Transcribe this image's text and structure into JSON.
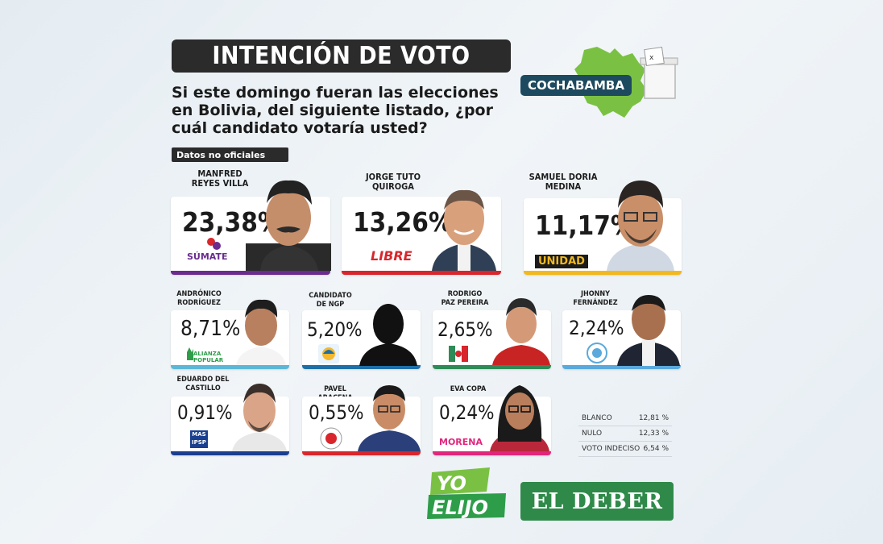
{
  "header": {
    "title": "INTENCIÓN DE VOTO"
  },
  "question": "Si este domingo fueran las elecciones en Bolivia, del siguiente listado, ¿por cuál candidato votaría usted?",
  "disclaimer": "Datos no oficiales",
  "region": {
    "label": "COCHABAMBA",
    "map_color": "#7ac143"
  },
  "candidates": [
    {
      "name": "MANFRED REYES VILLA",
      "percent": "23,38%",
      "party": "SÚMATE",
      "bar_color": "#6a2c8e"
    },
    {
      "name": "JORGE TUTO QUIROGA",
      "percent": "13,26%",
      "party": "LIBRE",
      "bar_color": "#d8262c"
    },
    {
      "name": "SAMUEL DORIA MEDINA",
      "percent": "11,17%",
      "party": "UNIDAD",
      "bar_color": "#f2b81e"
    },
    {
      "name": "ANDRÓNICO RODRÍGUEZ",
      "percent": "8,71%",
      "party": "ALIANZA POPULAR",
      "bar_color": "#5cb7d6"
    },
    {
      "name": "CANDIDATO DE NGP",
      "percent": "5,20%",
      "party": "NGP",
      "bar_color": "#1e6fa8"
    },
    {
      "name": "RODRIGO PAZ PEREIRA",
      "percent": "2,65%",
      "party": "PDC",
      "bar_color": "#2e8b57"
    },
    {
      "name": "JHONNY FERNÁNDEZ",
      "percent": "2,24%",
      "party": "FUERZA DEL PUEBLO",
      "bar_color": "#5aa9dc"
    },
    {
      "name": "EDUARDO DEL CASTILLO",
      "percent": "0,91%",
      "party": "MAS IPSP",
      "bar_color": "#1a3f8f"
    },
    {
      "name": "PAVEL ARACENA",
      "percent": "0,55%",
      "party": "ADN",
      "bar_color": "#d8262c"
    },
    {
      "name": "EVA COPA",
      "percent": "0,24%",
      "party": "MORENA",
      "bar_color": "#e0267d"
    }
  ],
  "summary": [
    {
      "label": "BLANCO",
      "value": "12,81 %"
    },
    {
      "label": "NULO",
      "value": "12,33 %"
    },
    {
      "label": "VOTO INDECISO",
      "value": "6,54 %"
    }
  ],
  "footer": {
    "yo": "YO",
    "elijo": "ELIJO",
    "brand": "EL DEBER"
  }
}
